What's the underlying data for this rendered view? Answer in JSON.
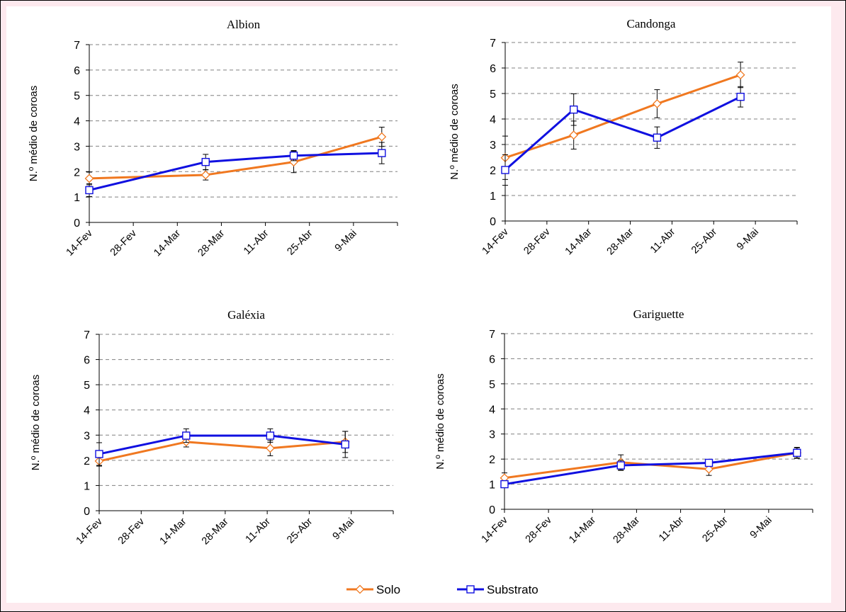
{
  "chart_data": [
    {
      "type": "line",
      "title": "Albion",
      "ylabel": "N.º médio de coroas",
      "xlabel": "",
      "ylim": [
        0,
        7
      ],
      "yticks": [
        "0",
        "1",
        "2",
        "3",
        "4",
        "5",
        "6",
        "7"
      ],
      "xticks": [
        "14-Fev",
        "28-Fev",
        "14-Mar",
        "28-Mar",
        "11-Abr",
        "25-Abr",
        "9-Mai"
      ],
      "grid": true,
      "series": [
        {
          "name": "Solo",
          "x": [
            "14-Fev",
            "22-Mar",
            "19-Abr",
            "17-Mai"
          ],
          "values": [
            1.73,
            1.87,
            2.38,
            3.37
          ],
          "errors": [
            0.25,
            0.2,
            0.42,
            0.38
          ],
          "color": "#f07820",
          "marker": "diamond"
        },
        {
          "name": "Substrato",
          "x": [
            "14-Fev",
            "22-Mar",
            "19-Abr",
            "17-Mai"
          ],
          "values": [
            1.27,
            2.38,
            2.63,
            2.73
          ],
          "errors": [
            0.25,
            0.3,
            0.2,
            0.42
          ],
          "color": "#1010e0",
          "marker": "square"
        }
      ]
    },
    {
      "type": "line",
      "title": "Candonga",
      "ylabel": "N.º médio de coroas",
      "xlabel": "",
      "ylim": [
        0,
        7
      ],
      "yticks": [
        "0",
        "1",
        "2",
        "3",
        "4",
        "5",
        "6",
        "7"
      ],
      "xticks": [
        "14-Fev",
        "28-Fev",
        "14-Mar",
        "28-Mar",
        "11-Abr",
        "25-Abr",
        "9-Mai"
      ],
      "grid": true,
      "series": [
        {
          "name": "Solo",
          "x": [
            "14-Fev",
            "8-Mar",
            "5-Abr",
            "3-Mai"
          ],
          "values": [
            2.48,
            3.37,
            4.6,
            5.73
          ],
          "errors": [
            0.85,
            0.55,
            0.55,
            0.5
          ],
          "color": "#f07820",
          "marker": "diamond"
        },
        {
          "name": "Substrato",
          "x": [
            "14-Fev",
            "8-Mar",
            "5-Abr",
            "3-Mai"
          ],
          "values": [
            2.0,
            4.37,
            3.27,
            4.87
          ],
          "errors": [
            0.6,
            0.62,
            0.42,
            0.4
          ],
          "color": "#1010e0",
          "marker": "square"
        }
      ]
    },
    {
      "type": "line",
      "title": "Galéxia",
      "ylabel": "N.º médio de coroas",
      "xlabel": "",
      "ylim": [
        0,
        7
      ],
      "yticks": [
        "0",
        "1",
        "2",
        "3",
        "4",
        "5",
        "6",
        "7"
      ],
      "xticks": [
        "14-Fev",
        "28-Fev",
        "14-Mar",
        "28-Mar",
        "11-Abr",
        "25-Abr",
        "9-Mai"
      ],
      "grid": true,
      "series": [
        {
          "name": "Solo",
          "x": [
            "14-Fev",
            "14-Mar",
            "11-Abr",
            "6-Mai"
          ],
          "values": [
            1.97,
            2.73,
            2.48,
            2.73
          ],
          "errors": [
            0.2,
            0.2,
            0.3,
            0.42
          ],
          "color": "#f07820",
          "marker": "diamond"
        },
        {
          "name": "Substrato",
          "x": [
            "14-Fev",
            "14-Mar",
            "11-Abr",
            "6-Mai"
          ],
          "values": [
            2.25,
            2.98,
            2.98,
            2.63
          ],
          "errors": [
            0.45,
            0.27,
            0.27,
            0.52
          ],
          "color": "#1010e0",
          "marker": "square"
        }
      ]
    },
    {
      "type": "line",
      "title": "Gariguette",
      "ylabel": "N.º médio de coroas",
      "xlabel": "",
      "ylim": [
        0,
        7
      ],
      "yticks": [
        "0",
        "1",
        "2",
        "3",
        "4",
        "5",
        "6",
        "7"
      ],
      "xticks": [
        "14-Fev",
        "28-Fev",
        "14-Mar",
        "28-Mar",
        "11-Abr",
        "25-Abr",
        "9-Mai"
      ],
      "grid": true,
      "series": [
        {
          "name": "Solo",
          "x": [
            "14-Fev",
            "22-Mar",
            "19-Abr",
            "17-Mai"
          ],
          "values": [
            1.25,
            1.87,
            1.6,
            2.25
          ],
          "errors": [
            0.2,
            0.3,
            0.25,
            0.2
          ],
          "color": "#f07820",
          "marker": "diamond"
        },
        {
          "name": "Substrato",
          "x": [
            "14-Fev",
            "22-Mar",
            "19-Abr",
            "17-Mai"
          ],
          "values": [
            1.0,
            1.75,
            1.85,
            2.25
          ],
          "errors": [
            0.1,
            0.2,
            0.12,
            0.22
          ],
          "color": "#1010e0",
          "marker": "square"
        }
      ]
    }
  ],
  "legend": {
    "placement": "bottom-center",
    "items": [
      {
        "label": "Solo",
        "color": "#f07820",
        "marker": "diamond"
      },
      {
        "label": "Substrato",
        "color": "#1010e0",
        "marker": "square"
      }
    ]
  },
  "colors": {
    "frame_background": "#fde9ee",
    "panel_background": "#ffffff",
    "grid": "#808080"
  }
}
